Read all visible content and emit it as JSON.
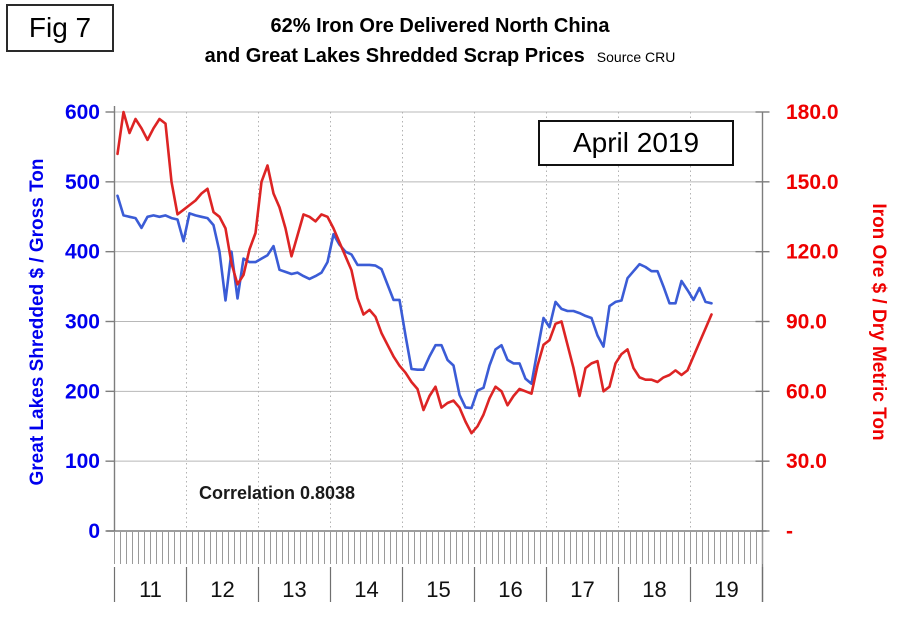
{
  "fig_label": "Fig 7",
  "title": {
    "line1": "62% Iron Ore Delivered North China",
    "line2": "and Great Lakes Shredded Scrap Prices",
    "source": "Source CRU"
  },
  "annotation_box_label": "April 2019",
  "correlation_text": "Correlation 0.8038",
  "colors": {
    "scrap_line": "#3b5cd6",
    "scrap_axis_text": "#0000ee",
    "ore_line": "#dd2424",
    "ore_axis_text": "#ee0000",
    "gridline": "#b8b8b8",
    "dotted_gridline": "#b2b2b2",
    "axis_line": "#7d7d7d",
    "month_tick": "#9a9a9a",
    "year_divider": "#6f6f6f",
    "year_text": "#111111"
  },
  "chart_data": {
    "type": "line",
    "x_unit": "month",
    "x_start": "2011-01",
    "x_end": "2019-04",
    "grid": "on",
    "legend_position": "none",
    "year_labels": [
      "11",
      "12",
      "13",
      "14",
      "15",
      "16",
      "17",
      "18",
      "19"
    ],
    "left_axis": {
      "label": "Great Lakes Shredded $ / Gross Ton",
      "range": [
        0,
        600
      ],
      "tick_values": [
        600,
        500,
        400,
        300,
        200,
        100,
        0
      ],
      "tick_labels": [
        "600",
        "500",
        "400",
        "300",
        "200",
        "100",
        "0"
      ]
    },
    "right_axis": {
      "label": "Iron Ore $ / Dry Metric Ton",
      "range": [
        0,
        180
      ],
      "tick_values": [
        180,
        150,
        120,
        90,
        60,
        30,
        0
      ],
      "tick_labels": [
        "180.0",
        "150.0",
        "120.0",
        "90.0",
        "60.0",
        "30.0",
        "-"
      ]
    },
    "series": [
      {
        "name": "Great Lakes Shredded Scrap ($/gross ton)",
        "axis": "left",
        "color_ref": "scrap_line",
        "values": [
          480,
          452,
          450,
          448,
          434,
          450,
          452,
          450,
          452,
          448,
          446,
          415,
          455,
          452,
          450,
          448,
          438,
          400,
          330,
          400,
          333,
          390,
          385,
          385,
          390,
          395,
          408,
          374,
          371,
          368,
          370,
          365,
          361,
          365,
          370,
          385,
          425,
          410,
          400,
          396,
          381,
          381,
          381,
          380,
          375,
          353,
          331,
          331,
          280,
          232,
          231,
          231,
          250,
          266,
          266,
          245,
          237,
          195,
          177,
          176,
          201,
          205,
          237,
          260,
          266,
          245,
          240,
          240,
          218,
          211,
          259,
          305,
          292,
          328,
          318,
          315,
          315,
          312,
          308,
          305,
          280,
          264,
          322,
          328,
          330,
          362,
          372,
          382,
          378,
          372,
          372,
          350,
          326,
          326,
          358,
          345,
          331,
          348,
          328,
          326
        ]
      },
      {
        "name": "62% Iron Ore Delivered North China ($/dry metric ton)",
        "axis": "right",
        "color_ref": "ore_line",
        "values": [
          162,
          180,
          171,
          177,
          173,
          168,
          173,
          177,
          175,
          150,
          136,
          138,
          140,
          142,
          145,
          147,
          137,
          135,
          130,
          115,
          106,
          110,
          121,
          128,
          150,
          157,
          145,
          139,
          130,
          118,
          127,
          136,
          135,
          133,
          136,
          135,
          130,
          124,
          118,
          112,
          100,
          93,
          95,
          92,
          85,
          80,
          75,
          71,
          68,
          64,
          61,
          52,
          58,
          62,
          53,
          55,
          56,
          53,
          47,
          42,
          45,
          50,
          57,
          62,
          60,
          54,
          58,
          61,
          60,
          59,
          71,
          80,
          82,
          89,
          90,
          80,
          70,
          58,
          70,
          72,
          73,
          60,
          62,
          72,
          76,
          78,
          70,
          66,
          65,
          65,
          64,
          66,
          67,
          69,
          67,
          69,
          75,
          81,
          87,
          93
        ]
      }
    ]
  }
}
